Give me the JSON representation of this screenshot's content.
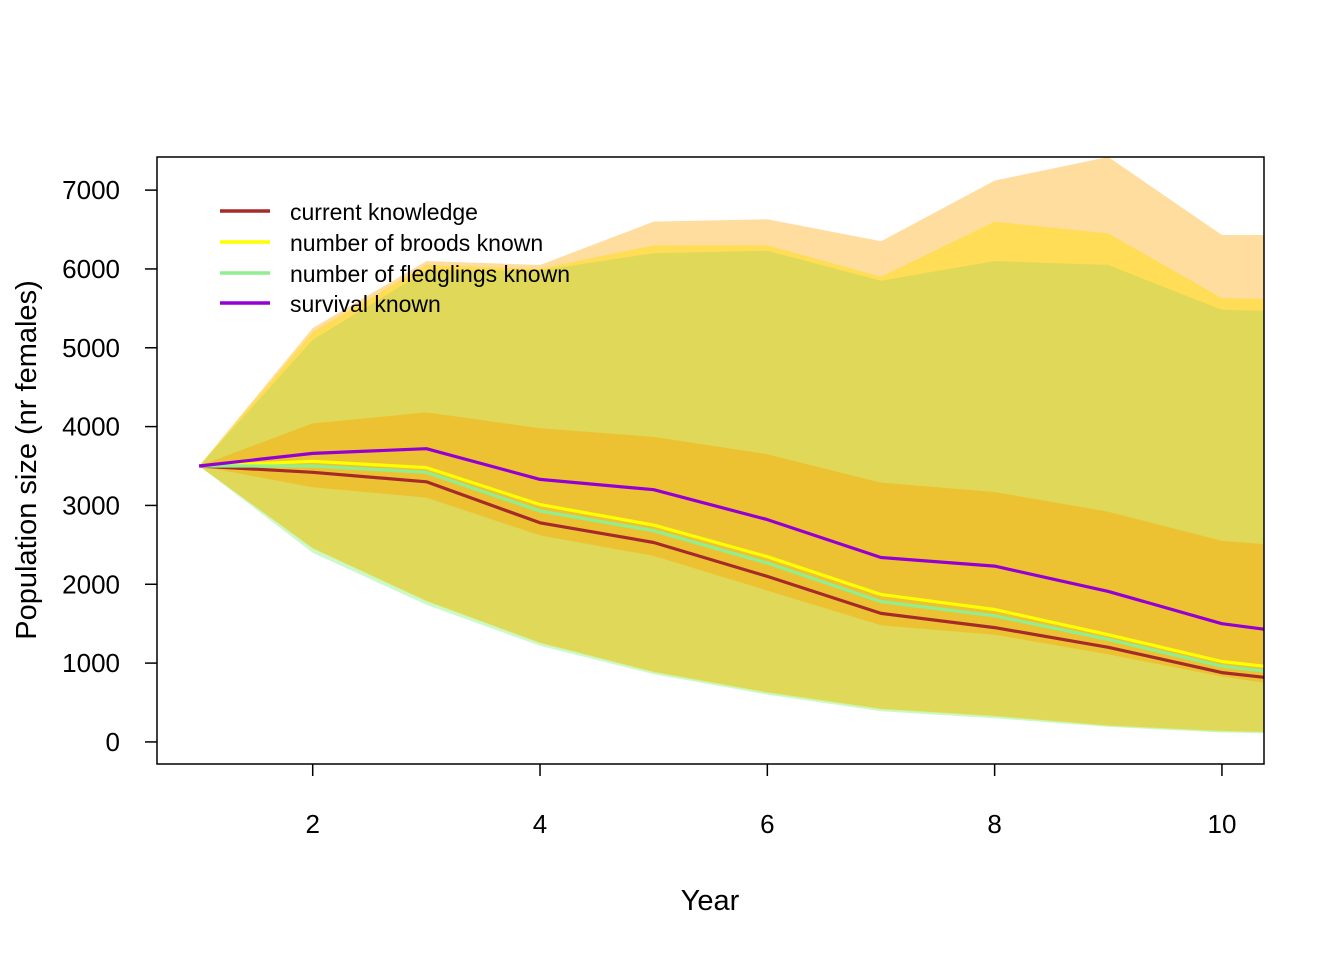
{
  "chart_data": {
    "type": "area",
    "title": "",
    "xlabel": "Year",
    "ylabel": "Population size (nr females)",
    "xlim": [
      0.63,
      10.37
    ],
    "ylim": [
      -280,
      7420
    ],
    "x_ticks": [
      2,
      4,
      6,
      8,
      10
    ],
    "y_ticks": [
      0,
      1000,
      2000,
      3000,
      4000,
      5000,
      6000,
      7000
    ],
    "grid": false,
    "legend_position": "top-left",
    "x": [
      1,
      2,
      3,
      4,
      5,
      6,
      7,
      8,
      9,
      10,
      10.37
    ],
    "series": [
      {
        "name": "current knowledge",
        "color": "#a52a2a",
        "band_color": "#ffa500",
        "mean": [
          3500,
          3420,
          3300,
          2780,
          2530,
          2100,
          1630,
          1450,
          1200,
          880,
          820
        ],
        "lower": [
          3500,
          3230,
          3100,
          2620,
          2360,
          1920,
          1480,
          1360,
          1110,
          830,
          750
        ],
        "upper": [
          3500,
          4040,
          4180,
          3980,
          3870,
          3650,
          3290,
          3170,
          2920,
          2550,
          2510
        ]
      },
      {
        "name": "number of broods known",
        "color": "#ffff00",
        "band_color": "#ffff00",
        "mean": [
          3500,
          3560,
          3480,
          3010,
          2750,
          2350,
          1870,
          1680,
          1360,
          1020,
          960
        ],
        "lower": [
          3500,
          2450,
          1780,
          1250,
          880,
          620,
          410,
          320,
          200,
          130,
          120
        ],
        "upper": [
          3500,
          5200,
          6050,
          6000,
          6300,
          6300,
          5900,
          6600,
          6450,
          5630,
          5620
        ]
      },
      {
        "name": "number of fledglings known",
        "color": "#90ee90",
        "band_color": "#90ee90",
        "mean": [
          3500,
          3500,
          3420,
          2930,
          2680,
          2270,
          1780,
          1600,
          1300,
          960,
          900
        ],
        "lower": [
          3500,
          2400,
          1740,
          1220,
          860,
          600,
          390,
          300,
          190,
          120,
          110
        ],
        "upper": [
          3500,
          5100,
          5980,
          5980,
          6200,
          6230,
          5850,
          6100,
          6050,
          5480,
          5470
        ]
      },
      {
        "name": "survival known",
        "color": "#9400d3",
        "band_color": "#ffa500",
        "mean": [
          3500,
          3660,
          3720,
          3330,
          3200,
          2820,
          2340,
          2230,
          1910,
          1500,
          1430
        ],
        "lower": [
          3500,
          2460,
          1790,
          1260,
          890,
          630,
          420,
          330,
          210,
          140,
          130
        ],
        "upper": [
          3500,
          5250,
          6100,
          6050,
          6600,
          6630,
          6350,
          7120,
          7420,
          6430,
          6430
        ]
      }
    ]
  }
}
